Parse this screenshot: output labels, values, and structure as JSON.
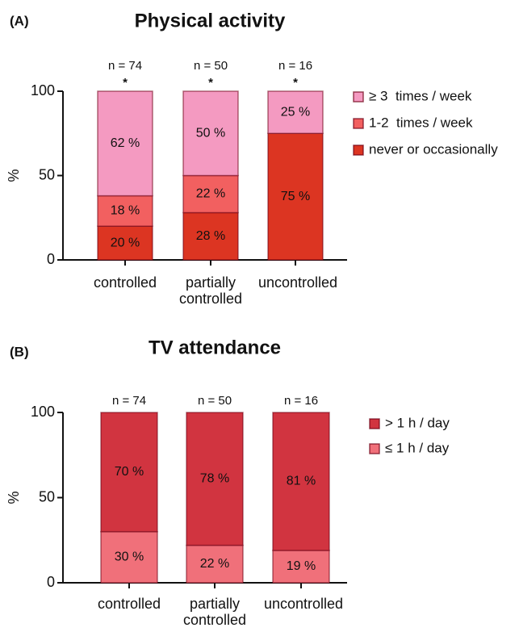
{
  "chart_data": [
    {
      "type": "stacked_bar",
      "panel_label": "(A)",
      "title": "Physical activity",
      "ylabel": "%",
      "categories": [
        "controlled",
        "partially controlled",
        "uncontrolled"
      ],
      "annotations": [
        "n = 74",
        "n = 50",
        "n = 16"
      ],
      "significance": [
        "*",
        "*",
        "*"
      ],
      "series": [
        {
          "name": "never or occasionally",
          "color": "#dc3522",
          "values": [
            20,
            28,
            75
          ],
          "value_labels": [
            "20 %",
            "28 %",
            "75 %"
          ]
        },
        {
          "name": "1-2  times / week",
          "color": "#f26060",
          "values": [
            18,
            22,
            0
          ],
          "value_labels": [
            "18 %",
            "22 %",
            null
          ]
        },
        {
          "name": "≥ 3  times / week",
          "color": "#f49ac1",
          "values": [
            62,
            50,
            25
          ],
          "value_labels": [
            "62 %",
            "50 %",
            "25 %"
          ]
        }
      ],
      "ylim": [
        0,
        100
      ],
      "yticks": [
        0,
        50,
        100
      ]
    },
    {
      "type": "stacked_bar",
      "panel_label": "(B)",
      "title": "TV attendance",
      "ylabel": "%",
      "categories": [
        "controlled",
        "partially controlled",
        "uncontrolled"
      ],
      "annotations": [
        "n = 74",
        "n = 50",
        "n = 16"
      ],
      "series": [
        {
          "name": "≤ 1 h / day",
          "color": "#f0707a",
          "values": [
            30,
            22,
            19
          ],
          "value_labels": [
            "30 %",
            "22 %",
            "19 %"
          ]
        },
        {
          "name": "> 1 h / day",
          "color": "#d13440",
          "values": [
            70,
            78,
            81
          ],
          "value_labels": [
            "70 %",
            "78 %",
            "81 %"
          ]
        }
      ],
      "ylim": [
        0,
        100
      ],
      "yticks": [
        0,
        50,
        100
      ]
    }
  ]
}
